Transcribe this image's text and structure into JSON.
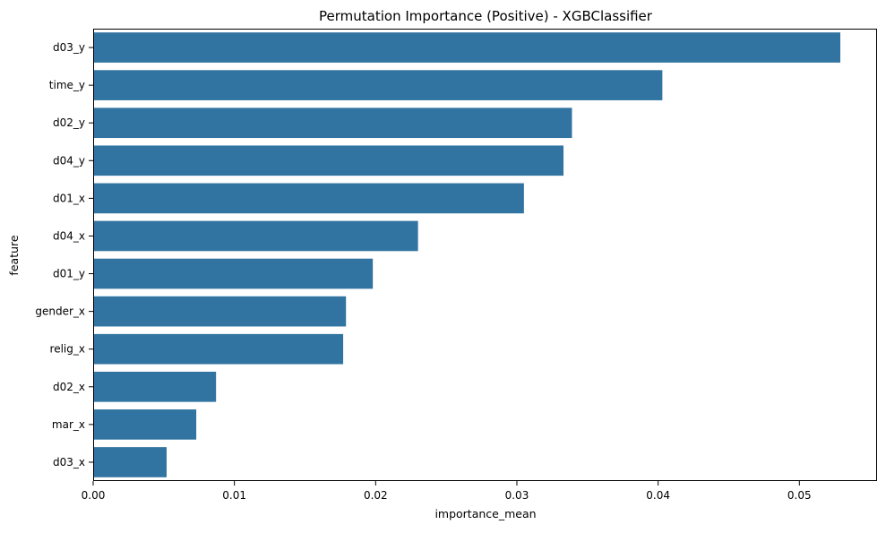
{
  "chart_data": {
    "type": "bar",
    "orientation": "horizontal",
    "title": "Permutation Importance (Positive) - XGBClassifier",
    "xlabel": "importance_mean",
    "ylabel": "feature",
    "categories": [
      "d03_y",
      "time_y",
      "d02_y",
      "d04_y",
      "d01_x",
      "d04_x",
      "d01_y",
      "gender_x",
      "relig_x",
      "d02_x",
      "mar_x",
      "d03_x"
    ],
    "values": [
      0.0529,
      0.0403,
      0.0339,
      0.0333,
      0.0305,
      0.023,
      0.0198,
      0.0179,
      0.0177,
      0.0087,
      0.0073,
      0.0052
    ],
    "xlim": [
      0,
      0.0555
    ],
    "xticks": [
      0,
      0.01,
      0.02,
      0.03,
      0.04,
      0.05
    ],
    "xtick_labels": [
      "0.00",
      "0.01",
      "0.02",
      "0.03",
      "0.04",
      "0.05"
    ],
    "grid": false,
    "bar_color": "#3274a1"
  }
}
